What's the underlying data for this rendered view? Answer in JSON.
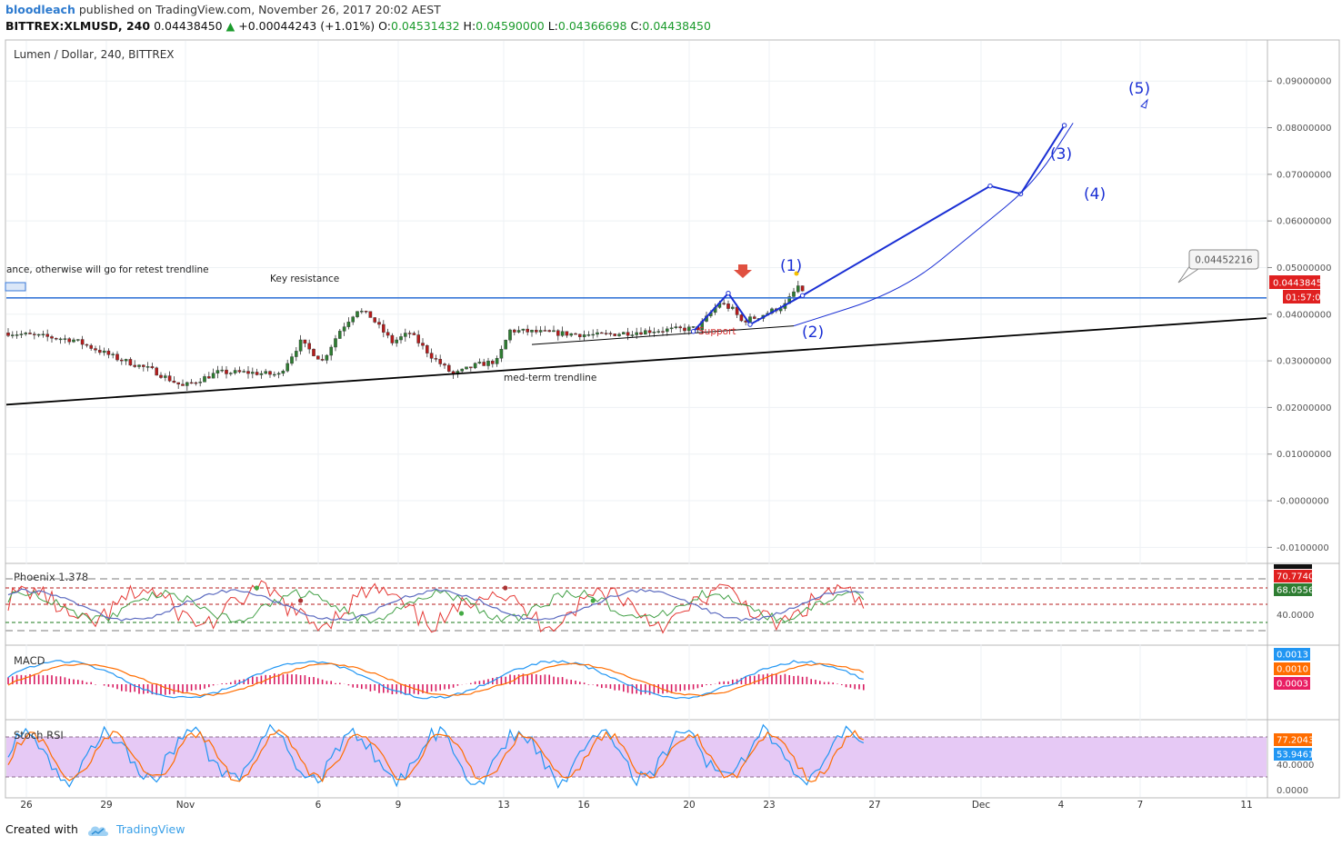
{
  "header": {
    "user": "bloodleach",
    "published": "published on TradingView.com, November 26, 2017 20:02 AEST",
    "symbol": "BITTREX:XLMUSD, 240",
    "last": "0.04438450",
    "change": "+0.00044243 (+1.01%)",
    "o_label": "O:",
    "o": "0.04531432",
    "h_label": "H:",
    "h": "0.04590000",
    "l_label": "L:",
    "l": "0.04366698",
    "c_label": "C:",
    "c": "0.04438450"
  },
  "footer": {
    "created": "Created with",
    "brand": "TradingView"
  },
  "colors": {
    "up": "#1b9b2c",
    "down": "#c62828",
    "wave": "#1a2fd4",
    "resistance": "#3a78d8",
    "trend": "#000000"
  },
  "chart_data": [
    {
      "type": "candlestick",
      "title": "Lumen / Dollar, 240, BITTREX",
      "x_ticks": [
        "26",
        "29",
        "Nov",
        "6",
        "9",
        "13",
        "16",
        "20",
        "23",
        "27",
        "Dec",
        "4",
        "7",
        "11"
      ],
      "y_ticks": [
        "0.09000000",
        "0.08000000",
        "0.07000000",
        "0.06000000",
        "0.05000000",
        "0.04000000",
        "0.03000000",
        "0.02000000",
        "0.01000000",
        "-0.0000000",
        "-0.0100000"
      ],
      "ylim": [
        -0.0113,
        0.0955
      ],
      "price_path": [
        [
          0,
          0.036
        ],
        [
          15,
          0.0345
        ],
        [
          25,
          0.0305
        ],
        [
          33,
          0.028
        ],
        [
          40,
          0.0245
        ],
        [
          48,
          0.0275
        ],
        [
          55,
          0.0275
        ],
        [
          62,
          0.027
        ],
        [
          67,
          0.034
        ],
        [
          72,
          0.03
        ],
        [
          76,
          0.0365
        ],
        [
          80,
          0.041
        ],
        [
          83,
          0.0395
        ],
        [
          88,
          0.034
        ],
        [
          92,
          0.036
        ],
        [
          97,
          0.031
        ],
        [
          102,
          0.027
        ],
        [
          107,
          0.029
        ],
        [
          112,
          0.03
        ],
        [
          115,
          0.0365
        ],
        [
          124,
          0.036
        ],
        [
          135,
          0.0355
        ],
        [
          148,
          0.0365
        ],
        [
          158,
          0.037
        ],
        [
          163,
          0.0425
        ],
        [
          166,
          0.041
        ],
        [
          168,
          0.0385
        ],
        [
          172,
          0.0395
        ],
        [
          178,
          0.042
        ],
        [
          181,
          0.046
        ],
        [
          182,
          0.0444
        ]
      ],
      "price_label": "0.04438450",
      "countdown": "01:57:05",
      "callout_price": "0.04452216",
      "annotations": {
        "note_text": "ance, otherwise will go for retest trendline",
        "key_resistance": "Key resistance",
        "support": "Support",
        "trendline": "med-term trendline",
        "waves": [
          "(1)",
          "(2)",
          "(3)",
          "(4)",
          "(5)"
        ]
      },
      "resistance_level": 0.0435,
      "trendline": {
        "x0": -2,
        "y0": 0.0205,
        "x1": 270,
        "y1": 0.038
      },
      "support_line": {
        "x0": 120,
        "y0": 0.0335,
        "x1": 180,
        "y1": 0.0375
      },
      "wave_path": [
        [
          157,
          0.0363
        ],
        [
          165,
          0.0445
        ],
        [
          170,
          0.0378
        ],
        [
          182,
          0.044
        ],
        [
          225,
          0.0675
        ],
        [
          232,
          0.0658
        ],
        [
          242,
          0.0805
        ]
      ],
      "curve_path": [
        [
          180,
          0.0375
        ],
        [
          205,
          0.045
        ],
        [
          222,
          0.058
        ],
        [
          235,
          0.068
        ],
        [
          244,
          0.081
        ]
      ]
    },
    {
      "type": "line",
      "title": "Phoenix 1.378",
      "series_labels": [
        "70.7740",
        "68.0556"
      ],
      "y_ticks": [
        "40.0000"
      ]
    },
    {
      "type": "line",
      "title": "MACD",
      "series_labels": [
        "0.0013",
        "0.0010",
        "0.0003"
      ]
    },
    {
      "type": "line",
      "title": "Stoch RSI",
      "series_labels": [
        "77.2043",
        "53.9461"
      ],
      "y_ticks": [
        "40.0000",
        "0.0000"
      ]
    }
  ]
}
